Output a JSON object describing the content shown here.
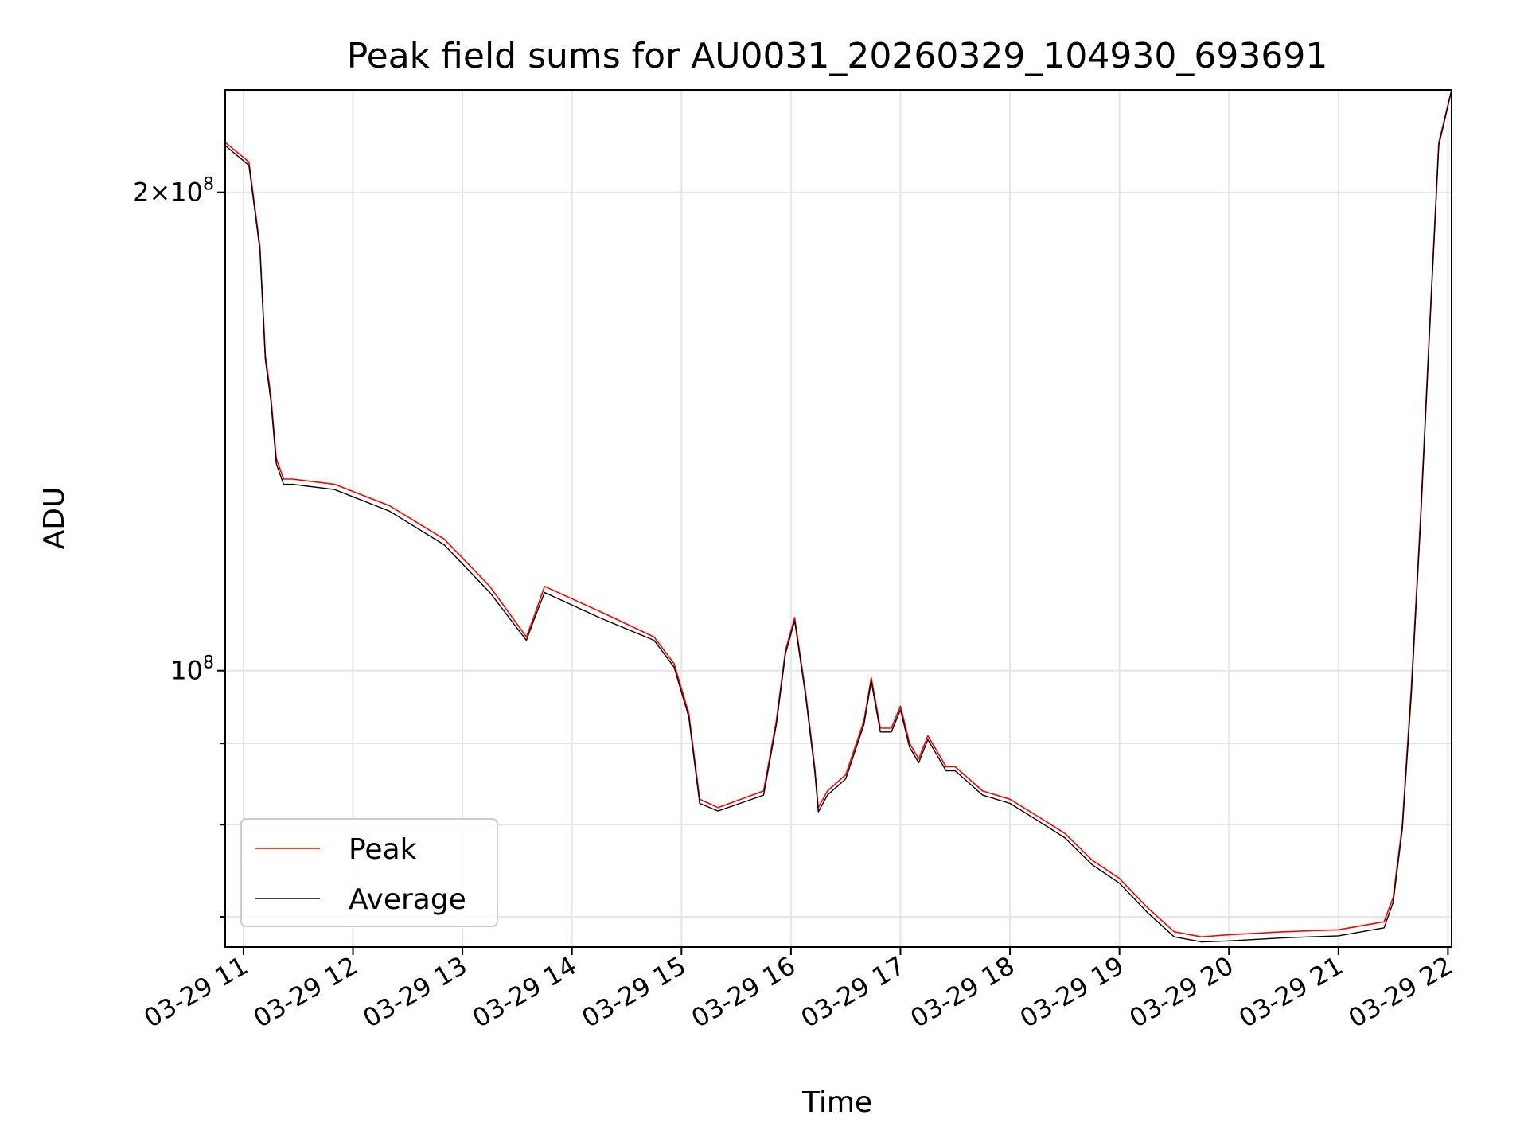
{
  "chart_data": {
    "type": "line",
    "title": "Peak field sums for AU0031_20260329_104930_693691",
    "xlabel": "Time",
    "ylabel": "ADU",
    "y_scale": "log",
    "ylim": [
      67000000,
      232000000
    ],
    "xlim": [
      "2026-03-29 10:50",
      "2026-03-29 22:02"
    ],
    "grid": true,
    "legend_position": "lower-left",
    "x_ticks": [
      {
        "t": "2026-03-29 11:00",
        "label": "03-29 11"
      },
      {
        "t": "2026-03-29 12:00",
        "label": "03-29 12"
      },
      {
        "t": "2026-03-29 13:00",
        "label": "03-29 13"
      },
      {
        "t": "2026-03-29 14:00",
        "label": "03-29 14"
      },
      {
        "t": "2026-03-29 15:00",
        "label": "03-29 15"
      },
      {
        "t": "2026-03-29 16:00",
        "label": "03-29 16"
      },
      {
        "t": "2026-03-29 17:00",
        "label": "03-29 17"
      },
      {
        "t": "2026-03-29 18:00",
        "label": "03-29 18"
      },
      {
        "t": "2026-03-29 19:00",
        "label": "03-29 19"
      },
      {
        "t": "2026-03-29 20:00",
        "label": "03-29 20"
      },
      {
        "t": "2026-03-29 21:00",
        "label": "03-29 21"
      },
      {
        "t": "2026-03-29 22:00",
        "label": "03-29 22"
      }
    ],
    "y_major_ticks": [
      {
        "value": 100000000,
        "base": "10",
        "exp": "8",
        "coef": ""
      },
      {
        "value": 200000000,
        "base": "10",
        "exp": "8",
        "coef": "2"
      }
    ],
    "y_minor_ticks": [
      70000000,
      80000000,
      90000000
    ],
    "series": [
      {
        "name": "Peak",
        "color": "#ff0000",
        "x": [
          "2026-03-29 10:50",
          "2026-03-29 11:03",
          "2026-03-29 11:09",
          "2026-03-29 11:12",
          "2026-03-29 11:15",
          "2026-03-29 11:18",
          "2026-03-29 11:22",
          "2026-03-29 11:27",
          "2026-03-29 11:50",
          "2026-03-29 12:20",
          "2026-03-29 12:50",
          "2026-03-29 13:15",
          "2026-03-29 13:35",
          "2026-03-29 13:39",
          "2026-03-29 13:45",
          "2026-03-29 14:15",
          "2026-03-29 14:45",
          "2026-03-29 14:56",
          "2026-03-29 15:04",
          "2026-03-29 15:10",
          "2026-03-29 15:20",
          "2026-03-29 15:45",
          "2026-03-29 15:52",
          "2026-03-29 15:57",
          "2026-03-29 16:02",
          "2026-03-29 16:08",
          "2026-03-29 16:13",
          "2026-03-29 16:15",
          "2026-03-29 16:20",
          "2026-03-29 16:30",
          "2026-03-29 16:40",
          "2026-03-29 16:44",
          "2026-03-29 16:49",
          "2026-03-29 16:55",
          "2026-03-29 17:00",
          "2026-03-29 17:05",
          "2026-03-29 17:10",
          "2026-03-29 17:15",
          "2026-03-29 17:20",
          "2026-03-29 17:25",
          "2026-03-29 17:30",
          "2026-03-29 17:35",
          "2026-03-29 17:45",
          "2026-03-29 18:00",
          "2026-03-29 18:15",
          "2026-03-29 18:30",
          "2026-03-29 18:45",
          "2026-03-29 19:00",
          "2026-03-29 19:15",
          "2026-03-29 19:30",
          "2026-03-29 19:45",
          "2026-03-29 20:00",
          "2026-03-29 20:30",
          "2026-03-29 21:00",
          "2026-03-29 21:25",
          "2026-03-29 21:30",
          "2026-03-29 21:35",
          "2026-03-29 21:40",
          "2026-03-29 21:45",
          "2026-03-29 21:50",
          "2026-03-29 21:55",
          "2026-03-29 22:02"
        ],
        "y": [
          215000000,
          209000000,
          185000000,
          158000000,
          149000000,
          136000000,
          132000000,
          132000000,
          131000000,
          127000000,
          121000000,
          113000000,
          105000000,
          108000000,
          113000000,
          109000000,
          105000000,
          101000000,
          94000000,
          83000000,
          82000000,
          84000000,
          93000000,
          103000000,
          108000000,
          97000000,
          87000000,
          82000000,
          84000000,
          86000000,
          93000000,
          99000000,
          92000000,
          92000000,
          95000000,
          90000000,
          88000000,
          91000000,
          89000000,
          87000000,
          87000000,
          86000000,
          84000000,
          83000000,
          81000000,
          79000000,
          76000000,
          74000000,
          71000000,
          68500000,
          68000000,
          68200000,
          68500000,
          68700000,
          69500000,
          72000000,
          80000000,
          98000000,
          125000000,
          165000000,
          215000000,
          232000000
        ]
      },
      {
        "name": "Average",
        "color": "#000000",
        "x": [
          "2026-03-29 10:50",
          "2026-03-29 11:03",
          "2026-03-29 11:09",
          "2026-03-29 11:12",
          "2026-03-29 11:15",
          "2026-03-29 11:18",
          "2026-03-29 11:22",
          "2026-03-29 11:27",
          "2026-03-29 11:50",
          "2026-03-29 12:20",
          "2026-03-29 12:50",
          "2026-03-29 13:15",
          "2026-03-29 13:35",
          "2026-03-29 13:39",
          "2026-03-29 13:45",
          "2026-03-29 14:15",
          "2026-03-29 14:45",
          "2026-03-29 14:56",
          "2026-03-29 15:04",
          "2026-03-29 15:10",
          "2026-03-29 15:20",
          "2026-03-29 15:45",
          "2026-03-29 15:52",
          "2026-03-29 15:57",
          "2026-03-29 16:02",
          "2026-03-29 16:08",
          "2026-03-29 16:13",
          "2026-03-29 16:15",
          "2026-03-29 16:20",
          "2026-03-29 16:30",
          "2026-03-29 16:40",
          "2026-03-29 16:44",
          "2026-03-29 16:49",
          "2026-03-29 16:55",
          "2026-03-29 17:00",
          "2026-03-29 17:05",
          "2026-03-29 17:10",
          "2026-03-29 17:15",
          "2026-03-29 17:20",
          "2026-03-29 17:25",
          "2026-03-29 17:30",
          "2026-03-29 17:35",
          "2026-03-29 17:45",
          "2026-03-29 18:00",
          "2026-03-29 18:15",
          "2026-03-29 18:30",
          "2026-03-29 18:45",
          "2026-03-29 19:00",
          "2026-03-29 19:15",
          "2026-03-29 19:30",
          "2026-03-29 19:45",
          "2026-03-29 20:00",
          "2026-03-29 20:30",
          "2026-03-29 21:00",
          "2026-03-29 21:25",
          "2026-03-29 21:30",
          "2026-03-29 21:35",
          "2026-03-29 21:40",
          "2026-03-29 21:45",
          "2026-03-29 21:50",
          "2026-03-29 21:55",
          "2026-03-29 22:02"
        ],
        "y": [
          214000000,
          208000000,
          184000000,
          157000000,
          148000000,
          135000000,
          131000000,
          131000000,
          130000000,
          126000000,
          120000000,
          112000000,
          104500000,
          107500000,
          112000000,
          108000000,
          104500000,
          100500000,
          93500000,
          82500000,
          81600000,
          83500000,
          92500000,
          102500000,
          107500000,
          96500000,
          86500000,
          81500000,
          83500000,
          85500000,
          92500000,
          98500000,
          91500000,
          91500000,
          94500000,
          89500000,
          87500000,
          90500000,
          88500000,
          86500000,
          86500000,
          85500000,
          83500000,
          82500000,
          80500000,
          78500000,
          75500000,
          73500000,
          70500000,
          68000000,
          67500000,
          67600000,
          67900000,
          68100000,
          68900000,
          71500000,
          79500000,
          97000000,
          124000000,
          164000000,
          214000000,
          232000000
        ]
      }
    ]
  }
}
